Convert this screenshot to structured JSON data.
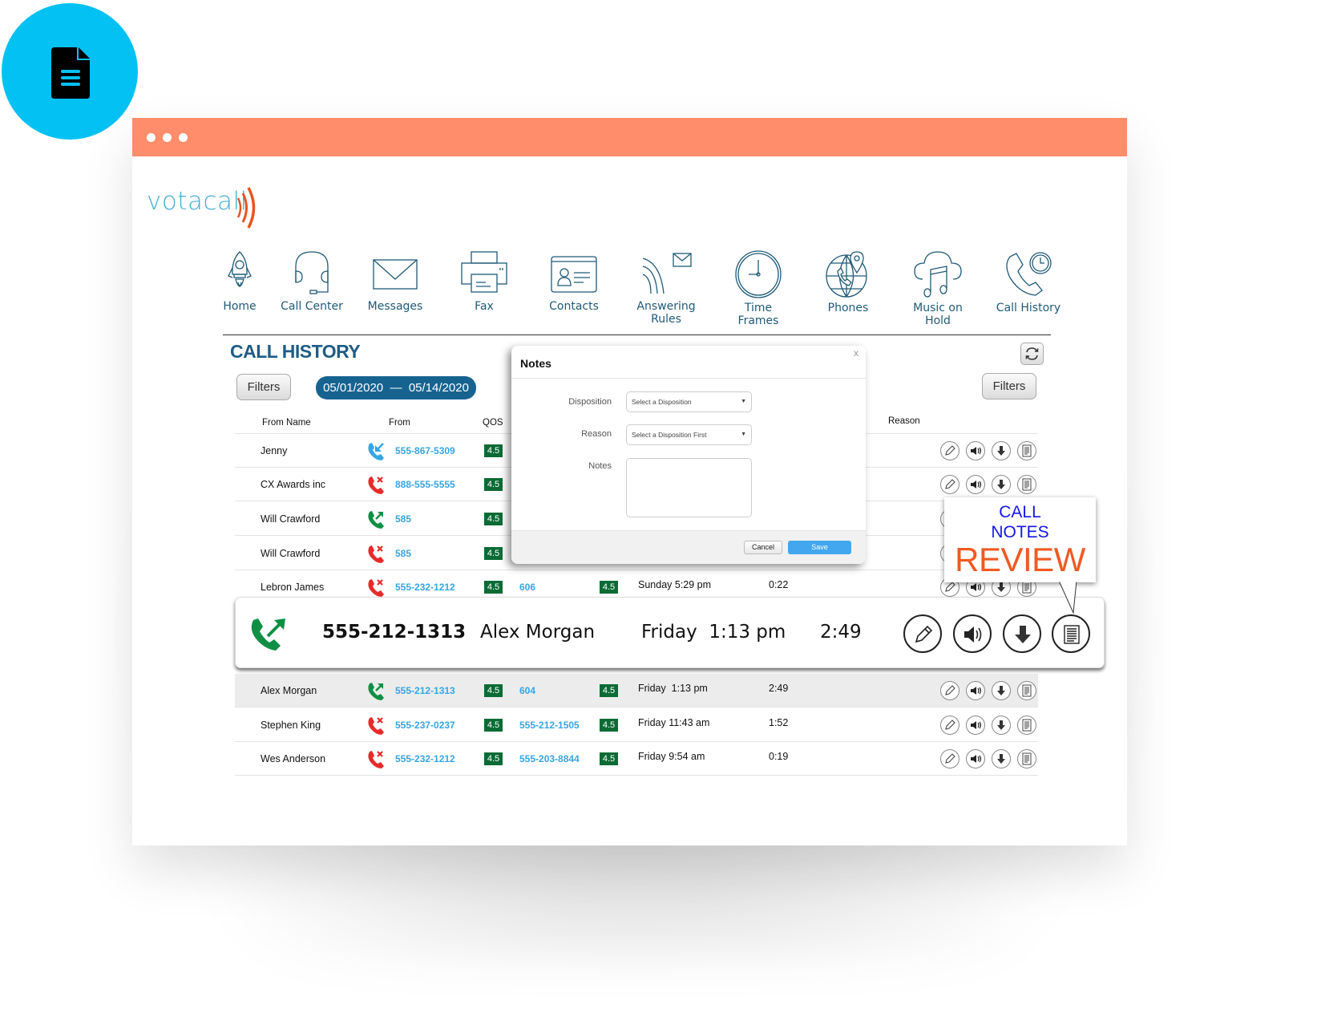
{
  "badge": {
    "icon": "document-icon",
    "color": "#04c1f3"
  },
  "window": {
    "titlebar_color": "#ff8d6b",
    "controls": [
      "dot",
      "dot",
      "dot"
    ]
  },
  "logo": {
    "text": "votacall",
    "wave_color": "#e8531f",
    "text_color": "#4aaed6"
  },
  "nav": {
    "items": [
      {
        "label": "Home",
        "icon": "rocket-icon"
      },
      {
        "label": "Call Center",
        "icon": "headset-icon"
      },
      {
        "label": "Messages",
        "icon": "envelope-icon"
      },
      {
        "label": "Fax",
        "icon": "printer-icon"
      },
      {
        "label": "Contacts",
        "icon": "contact-card-icon"
      },
      {
        "label": "Answering",
        "label2": "Rules",
        "icon": "answering-rules-icon"
      },
      {
        "label": "Time",
        "label2": "Frames",
        "icon": "clock-icon"
      },
      {
        "label": "Phones",
        "icon": "globe-phone-icon"
      },
      {
        "label": "Music on",
        "label2": "Hold",
        "icon": "cloud-music-icon"
      },
      {
        "label": "Call History",
        "icon": "phone-clock-icon"
      }
    ]
  },
  "page": {
    "title": "CALL HISTORY",
    "filters_label": "Filters",
    "date_start": "05/01/2020",
    "date_sep": "—",
    "date_end": "05/14/2020",
    "refresh_icon": "refresh-icon"
  },
  "table": {
    "headers": {
      "from_name": "From Name",
      "from": "From",
      "qos": "QOS",
      "reason": "Reason"
    },
    "rows": [
      {
        "name": "Jenny",
        "type": "incoming",
        "from": "555-867-5309",
        "qos": "4.5",
        "to": "",
        "qos2": "",
        "time": "",
        "duration": ""
      },
      {
        "name": "CX Awards inc",
        "type": "missed",
        "from": "888-555-5555",
        "qos": "4.5",
        "to": "",
        "qos2": "",
        "time": "",
        "duration": ""
      },
      {
        "name": "Will Crawford",
        "type": "outgoing",
        "from": "585",
        "qos": "4.5",
        "to": "",
        "qos2": "",
        "time": "",
        "duration": ""
      },
      {
        "name": "Will Crawford",
        "type": "missed",
        "from": "585",
        "qos": "4.5",
        "to": "",
        "qos2": "",
        "time": "",
        "duration": ""
      },
      {
        "name": "Lebron James",
        "type": "missed",
        "from": "555-232-1212",
        "qos": "4.5",
        "to": "606",
        "qos2": "4.5",
        "time": "Sunday 5:29 pm",
        "duration": "0:22"
      },
      {
        "name": "Alex Morgan",
        "type": "outgoing",
        "from": "555-212-1313",
        "qos": "4.5",
        "to": "604",
        "qos2": "4.5",
        "time": "Friday  1:13 pm",
        "duration": "2:49"
      },
      {
        "name": "Stephen King",
        "type": "missed",
        "from": "555-237-0237",
        "qos": "4.5",
        "to": "555-212-1505",
        "qos2": "4.5",
        "time": "Friday 11:43 am",
        "duration": "1:52"
      },
      {
        "name": "Wes Anderson",
        "type": "missed",
        "from": "555-232-1212",
        "qos": "4.5",
        "to": "555-203-8844",
        "qos2": "4.5",
        "time": "Friday 9:54 am",
        "duration": "0:19"
      }
    ],
    "row_actions": [
      "edit-icon",
      "play-audio-icon",
      "download-icon",
      "notes-icon"
    ]
  },
  "modal": {
    "title": "Notes",
    "close": "x",
    "disposition_label": "Disposition",
    "disposition_value": "Select a Disposition",
    "reason_label": "Reason",
    "reason_value": "Select a Disposition First",
    "notes_label": "Notes",
    "notes_value": "",
    "cancel_label": "Cancel",
    "save_label": "Save"
  },
  "featured_call": {
    "type": "outgoing",
    "number": "555-212-1313",
    "name": "Alex Morgan",
    "time": "Friday  1:13 pm",
    "duration": "2:49"
  },
  "callout": {
    "line1": "CALL",
    "line2": "NOTES",
    "line3": "REVIEW"
  },
  "colors": {
    "incoming": "#35a6e6",
    "missed": "#e82a2a",
    "outgoing": "#0f8f45",
    "qos_bg": "#0c6b35"
  }
}
